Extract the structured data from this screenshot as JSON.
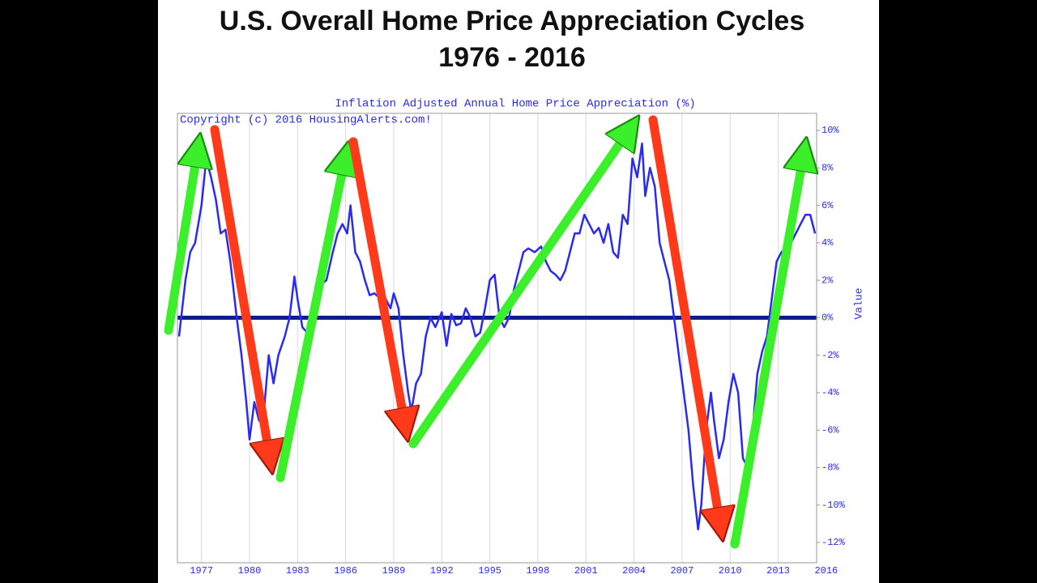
{
  "chart_data": {
    "type": "line",
    "title": "U.S. Overall Home Price Appreciation Cycles",
    "subtitle": "1976 - 2016",
    "chart_title": "Inflation Adjusted Annual Home Price Appreciation (%)",
    "annotation": "Copyright (c) 2016 HousingAlerts.com!",
    "y_label": "Value",
    "color": "#2a2af0",
    "zero_line_color": "#0a1a8a",
    "x": [
      1975.6,
      1976.0,
      1976.3,
      1976.6,
      1977.0,
      1977.3,
      1977.6,
      1977.9,
      1978.2,
      1978.5,
      1978.8,
      1979.2,
      1979.5,
      1979.8,
      1980.0,
      1980.3,
      1980.6,
      1980.9,
      1981.2,
      1981.5,
      1981.8,
      1982.2,
      1982.5,
      1982.8,
      1983.0,
      1983.3,
      1983.6,
      1983.9,
      1984.2,
      1984.5,
      1984.8,
      1985.2,
      1985.5,
      1985.8,
      1986.1,
      1986.3,
      1986.6,
      1986.9,
      1987.2,
      1987.5,
      1987.8,
      1988.2,
      1988.5,
      1988.8,
      1989.0,
      1989.3,
      1989.6,
      1989.9,
      1990.1,
      1990.4,
      1990.7,
      1991.0,
      1991.3,
      1991.6,
      1992.0,
      1992.3,
      1992.6,
      1992.9,
      1993.2,
      1993.5,
      1993.8,
      1994.1,
      1994.4,
      1994.7,
      1995.0,
      1995.3,
      1995.6,
      1995.9,
      1996.2,
      1996.5,
      1996.8,
      1997.1,
      1997.4,
      1997.8,
      1998.2,
      1998.5,
      1998.8,
      1999.1,
      1999.4,
      1999.7,
      2000.0,
      2000.3,
      2000.6,
      2000.9,
      2001.2,
      2001.5,
      2001.8,
      2002.1,
      2002.4,
      2002.7,
      2003.0,
      2003.3,
      2003.6,
      2003.9,
      2004.2,
      2004.5,
      2004.7,
      2005.0,
      2005.3,
      2005.6,
      2005.9,
      2006.2,
      2006.5,
      2006.8,
      2007.1,
      2007.4,
      2007.7,
      2008.0,
      2008.2,
      2008.5,
      2008.8,
      2009.0,
      2009.3,
      2009.6,
      2009.9,
      2010.2,
      2010.5,
      2010.8,
      2011.1,
      2011.4,
      2011.7,
      2012.0,
      2012.3,
      2012.6,
      2012.9,
      2013.2,
      2013.5,
      2013.8,
      2014.1,
      2014.4,
      2014.7,
      2015.0,
      2015.3
    ],
    "values": [
      -1.0,
      2,
      3.5,
      4,
      6,
      8.5,
      7.5,
      6.3,
      4.5,
      4.7,
      3,
      0,
      -2,
      -4.5,
      -6.5,
      -4.5,
      -5.5,
      -5,
      -2,
      -3.5,
      -2,
      -1,
      0,
      2.2,
      1,
      -0.5,
      -0.8,
      0.5,
      1.5,
      1.8,
      2,
      3.5,
      4.5,
      5,
      4.5,
      6,
      3.5,
      3,
      2,
      1.2,
      1.3,
      1,
      1,
      0.5,
      1.3,
      0.5,
      -2,
      -4,
      -5,
      -3.5,
      -3,
      -1,
      0,
      -0.5,
      0.3,
      -1.5,
      0.2,
      -0.4,
      -0.3,
      0.5,
      0,
      -1,
      -0.8,
      0.5,
      2,
      2.3,
      0,
      -0.5,
      0,
      1.5,
      2.5,
      3.5,
      3.7,
      3.5,
      3.8,
      3,
      2.5,
      2.3,
      2,
      2.5,
      3.5,
      4.5,
      4.5,
      5.5,
      5,
      4.5,
      4.8,
      4,
      5,
      3.5,
      3.2,
      5.5,
      5,
      8.5,
      7.5,
      9.3,
      6.5,
      8,
      7,
      4,
      3,
      2,
      0,
      -2,
      -4,
      -6,
      -9,
      -11.3,
      -10,
      -6,
      -4,
      -5.5,
      -7.5,
      -6.5,
      -4.5,
      -3,
      -4,
      -7.5,
      -8,
      -6,
      -3,
      -1.8,
      -1,
      1,
      3,
      3.5,
      3.7,
      4,
      4.5,
      5,
      5.5,
      5.5,
      4.5
    ],
    "xlim": [
      1975.5,
      2015.4
    ],
    "ylim": [
      -13.08,
      10.91
    ],
    "xticks": [
      1977,
      1980,
      1983,
      1986,
      1989,
      1992,
      1995,
      1998,
      2001,
      2004,
      2007,
      2010,
      2013,
      2016
    ],
    "yticks": [
      {
        "value": -12,
        "label": "-12%"
      },
      {
        "value": -10,
        "label": "-10%"
      },
      {
        "value": -8,
        "label": "-8%"
      },
      {
        "value": -6,
        "label": "-6%"
      },
      {
        "value": -4,
        "label": "-4%"
      },
      {
        "value": -2,
        "label": "-2%"
      },
      {
        "value": 0,
        "label": "0%"
      },
      {
        "value": 2,
        "label": "2%"
      },
      {
        "value": 4,
        "label": "4%"
      },
      {
        "value": 6,
        "label": "6%"
      },
      {
        "value": 8,
        "label": "8%"
      },
      {
        "value": 10,
        "label": "10%"
      }
    ],
    "grid": true
  }
}
